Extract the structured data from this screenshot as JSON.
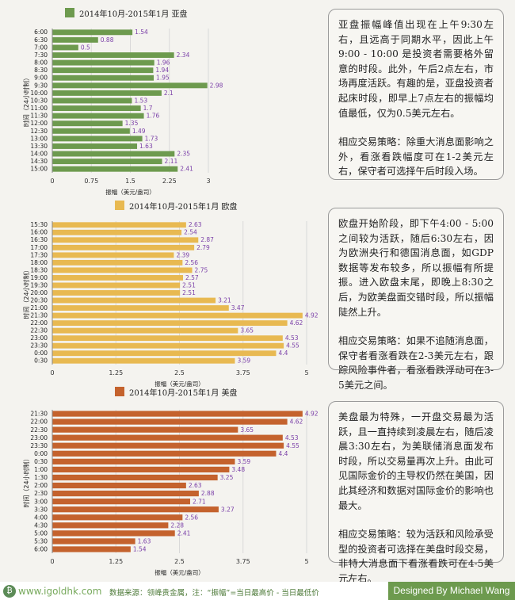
{
  "chart_data": [
    {
      "type": "bar",
      "orientation": "horizontal",
      "title": "2014年10月-2015年1月 亚盘",
      "color": "#6d9a4e",
      "xlabel": "振幅（美元/盎司）",
      "ylabel": "时间（24小时制）",
      "xlim": [
        0,
        3
      ],
      "xticks": [
        "0",
        "0.75",
        "1.5",
        "2.25",
        "3"
      ],
      "grid": true,
      "categories": [
        "6:00",
        "6:30",
        "7:00",
        "7:30",
        "8:00",
        "8:30",
        "9:00",
        "9:30",
        "10:00",
        "10:30",
        "11:00",
        "11:30",
        "12:00",
        "12:30",
        "13:00",
        "13:30",
        "14:00",
        "14:30",
        "15:00"
      ],
      "values": [
        1.54,
        0.88,
        0.5,
        2.34,
        1.96,
        1.94,
        1.95,
        2.98,
        2.1,
        1.53,
        1.7,
        1.76,
        1.35,
        1.49,
        1.73,
        1.63,
        2.35,
        2.11,
        2.41
      ]
    },
    {
      "type": "bar",
      "orientation": "horizontal",
      "title": "2014年10月-2015年1月 欧盘",
      "color": "#e8b951",
      "xlabel": "振幅（美元/盎司）",
      "ylabel": "时间（24小时制）",
      "xlim": [
        0,
        5
      ],
      "xticks": [
        "0",
        "1.25",
        "2.5",
        "3.75",
        "5"
      ],
      "grid": true,
      "categories": [
        "15:30",
        "16:00",
        "16:30",
        "17:00",
        "17:30",
        "18:00",
        "18:30",
        "19:00",
        "19:30",
        "20:00",
        "20:30",
        "21:00",
        "21:30",
        "22:00",
        "22:30",
        "23:00",
        "23:30",
        "0:00",
        "0:30"
      ],
      "values": [
        2.63,
        2.54,
        2.87,
        2.79,
        2.39,
        2.56,
        2.75,
        2.57,
        2.51,
        2.51,
        3.21,
        3.47,
        4.92,
        4.62,
        3.65,
        4.53,
        4.55,
        4.4,
        3.59
      ]
    },
    {
      "type": "bar",
      "orientation": "horizontal",
      "title": "2014年10月-2015年1月 美盘",
      "color": "#c4622d",
      "xlabel": "振幅（美元/盎司）",
      "ylabel": "时间（24小时制）",
      "xlim": [
        0,
        5
      ],
      "xticks": [
        "0",
        "1.25",
        "2.5",
        "3.75",
        "5"
      ],
      "grid": true,
      "categories": [
        "21:30",
        "22:00",
        "22:30",
        "23:00",
        "23:30",
        "0:00",
        "0:30",
        "1:00",
        "1:30",
        "2:00",
        "2:30",
        "3:00",
        "3:30",
        "4:00",
        "4:30",
        "5:00",
        "5:30",
        "6:00"
      ],
      "values": [
        4.92,
        4.62,
        3.65,
        4.53,
        4.55,
        4.4,
        3.59,
        3.48,
        3.25,
        2.63,
        2.88,
        2.71,
        3.27,
        2.56,
        2.28,
        2.41,
        1.63,
        1.54
      ]
    }
  ],
  "notes": [
    {
      "p1": "亚盘振幅峰值出现在上午9:30左右，且远高于同期水平，因此上午9:00 - 10:00 是投资者需要格外留意的时段。此外，午后2点左右，市场再度活跃。有趣的是，亚盘投资者起床时段，即早上7点左右的振幅均值最低，仅为0.5美元左右。",
      "p2": "相应交易策略：除重大消息面影响之外，看涨看跌幅度可在1-2美元左右，保守者可选择午后时段入场。"
    },
    {
      "p1": "欧盘开始阶段，即下午4:00 - 5:00之间较为活跃，随后6:30左右，因为欧洲央行和德国消息面，如GDP数据等发布较多，所以振幅有所提振。进入欧盘末尾，即晚上8:30之后，为欧美盘面交错时段，所以振幅陡然上升。",
      "p2": "相应交易策略：如果不追随消息面，保守者看涨看跌在2-3美元左右，跟踪风险事件者，看涨看跌浮动可在3-5美元之间。"
    },
    {
      "p1": "美盘最为特殊，一开盘交易最为活跃，且一直持续到凌晨左右，随后凌晨3:30左右，为美联储消息面发布时段，所以交易量再次上升。由此可见国际金价的主导权仍然在美国，因此其经济和数据对国际金价的影响也最大。",
      "p2": "相应交易策略：较为活跃和风险承受型的投资者可选择在美盘时段交易，非特大消息面下看涨看跌可在4-5美元左右。"
    }
  ],
  "footer": {
    "logo": "₿",
    "site": "www.igoldhk.com",
    "source": "数据来源：领峰贵金属，注：“振幅”=当日最高价 - 当日最低价",
    "credit": "Designed By Michael Wang"
  }
}
